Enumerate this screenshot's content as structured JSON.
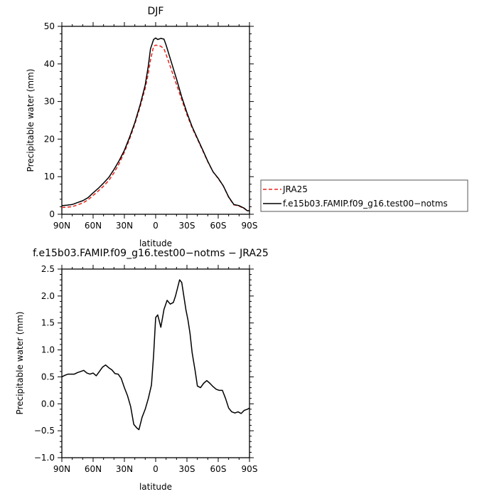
{
  "chart_data": [
    {
      "type": "line",
      "title": "DJF",
      "xlabel": "latitude",
      "ylabel": "Precipitable water (mm)",
      "xlim": [
        90,
        -90
      ],
      "ylim": [
        0,
        50
      ],
      "x_ticks": [
        90,
        60,
        30,
        0,
        -30,
        -60,
        -90
      ],
      "x_tick_labels": [
        "90N",
        "60N",
        "30N",
        "0",
        "30S",
        "60S",
        "90S"
      ],
      "y_ticks": [
        0,
        10,
        20,
        30,
        40,
        50
      ],
      "y_tick_labels": [
        "0",
        "10",
        "20",
        "30",
        "40",
        "50"
      ],
      "legend_position": "right, outside plot",
      "series": [
        {
          "name": "JRA25",
          "color": "#e8231c",
          "dash": "dashed",
          "x": [
            90,
            85,
            80,
            75,
            70,
            65,
            60,
            55,
            50,
            45,
            40,
            35,
            30,
            25,
            20,
            15,
            10,
            7,
            5,
            2,
            0,
            -2,
            -5,
            -8,
            -10,
            -15,
            -20,
            -25,
            -30,
            -35,
            -40,
            -45,
            -50,
            -55,
            -60,
            -65,
            -70,
            -75,
            -80,
            -85,
            -88,
            -90
          ],
          "values": [
            1.8,
            1.9,
            2.0,
            2.5,
            3.0,
            3.8,
            5.0,
            6.2,
            7.5,
            9.0,
            11.0,
            13.5,
            16.5,
            20.0,
            24.0,
            28.5,
            33.5,
            37.5,
            41.0,
            44.7,
            45.0,
            44.9,
            44.7,
            44.0,
            42.5,
            38.5,
            34.5,
            30.5,
            26.5,
            23.0,
            20.0,
            17.0,
            14.0,
            11.3,
            9.5,
            7.5,
            4.5,
            2.5,
            2.2,
            1.5,
            0.9,
            1.0
          ]
        },
        {
          "name": "f.e15b03.FAMIP.f09_g16.test00−notms",
          "color": "#000000",
          "dash": "solid",
          "x": [
            90,
            85,
            80,
            75,
            70,
            65,
            60,
            55,
            50,
            45,
            40,
            35,
            30,
            25,
            20,
            15,
            10,
            7,
            5,
            2,
            0,
            -2,
            -5,
            -8,
            -10,
            -15,
            -20,
            -25,
            -30,
            -35,
            -40,
            -45,
            -50,
            -55,
            -60,
            -65,
            -70,
            -75,
            -80,
            -85,
            -88,
            -90
          ],
          "values": [
            2.3,
            2.4,
            2.6,
            3.1,
            3.6,
            4.4,
            5.7,
            6.9,
            8.3,
            9.8,
            11.9,
            14.3,
            17.0,
            20.5,
            24.4,
            29.0,
            34.4,
            39.5,
            44.0,
            46.5,
            46.9,
            46.5,
            46.8,
            46.6,
            45.0,
            40.5,
            36.0,
            31.2,
            27.0,
            23.3,
            20.2,
            17.2,
            14.1,
            11.3,
            9.6,
            7.5,
            4.6,
            2.6,
            2.3,
            1.6,
            0.9,
            1.0
          ]
        }
      ]
    },
    {
      "type": "line",
      "title": "f.e15b03.FAMIP.f09_g16.test00−notms − JRA25",
      "xlabel": "latitude",
      "ylabel": "Precipitable water (mm)",
      "xlim": [
        90,
        -90
      ],
      "ylim": [
        -1.0,
        2.5
      ],
      "x_ticks": [
        90,
        60,
        30,
        0,
        -30,
        -60,
        -90
      ],
      "x_tick_labels": [
        "90N",
        "60N",
        "30N",
        "0",
        "30S",
        "60S",
        "90S"
      ],
      "y_ticks": [
        -1.0,
        -0.5,
        0.0,
        0.5,
        1.0,
        1.5,
        2.0,
        2.5
      ],
      "y_tick_labels": [
        "−1.0",
        "−0.5",
        "0.0",
        "0.5",
        "1.0",
        "1.5",
        "2.0",
        "2.5"
      ],
      "series": [
        {
          "color": "#000000",
          "dash": "solid",
          "x": [
            90,
            87,
            84,
            81,
            78,
            75,
            72,
            69,
            66,
            63,
            60,
            57,
            54,
            51,
            48,
            45,
            42,
            39,
            36,
            33,
            30,
            27,
            24,
            21,
            18,
            16,
            13,
            10,
            7,
            4,
            2,
            0,
            -2,
            -5,
            -8,
            -11,
            -14,
            -17,
            -19,
            -21,
            -23,
            -25,
            -27,
            -29,
            -31,
            -33,
            -35,
            -38,
            -40,
            -43,
            -46,
            -49,
            -52,
            -55,
            -58,
            -61,
            -64,
            -67,
            -70,
            -73,
            -76,
            -79,
            -82,
            -85,
            -88,
            -90
          ],
          "values": [
            0.5,
            0.53,
            0.55,
            0.55,
            0.55,
            0.58,
            0.6,
            0.62,
            0.57,
            0.55,
            0.57,
            0.52,
            0.6,
            0.68,
            0.72,
            0.67,
            0.63,
            0.56,
            0.55,
            0.47,
            0.3,
            0.15,
            -0.05,
            -0.38,
            -0.45,
            -0.48,
            -0.25,
            -0.1,
            0.1,
            0.35,
            0.9,
            1.6,
            1.65,
            1.42,
            1.75,
            1.92,
            1.85,
            1.88,
            2.0,
            2.15,
            2.3,
            2.25,
            2.0,
            1.75,
            1.55,
            1.3,
            0.95,
            0.6,
            0.33,
            0.3,
            0.38,
            0.43,
            0.38,
            0.32,
            0.27,
            0.25,
            0.25,
            0.1,
            -0.08,
            -0.15,
            -0.17,
            -0.15,
            -0.18,
            -0.12,
            -0.1,
            -0.08
          ]
        }
      ]
    }
  ]
}
